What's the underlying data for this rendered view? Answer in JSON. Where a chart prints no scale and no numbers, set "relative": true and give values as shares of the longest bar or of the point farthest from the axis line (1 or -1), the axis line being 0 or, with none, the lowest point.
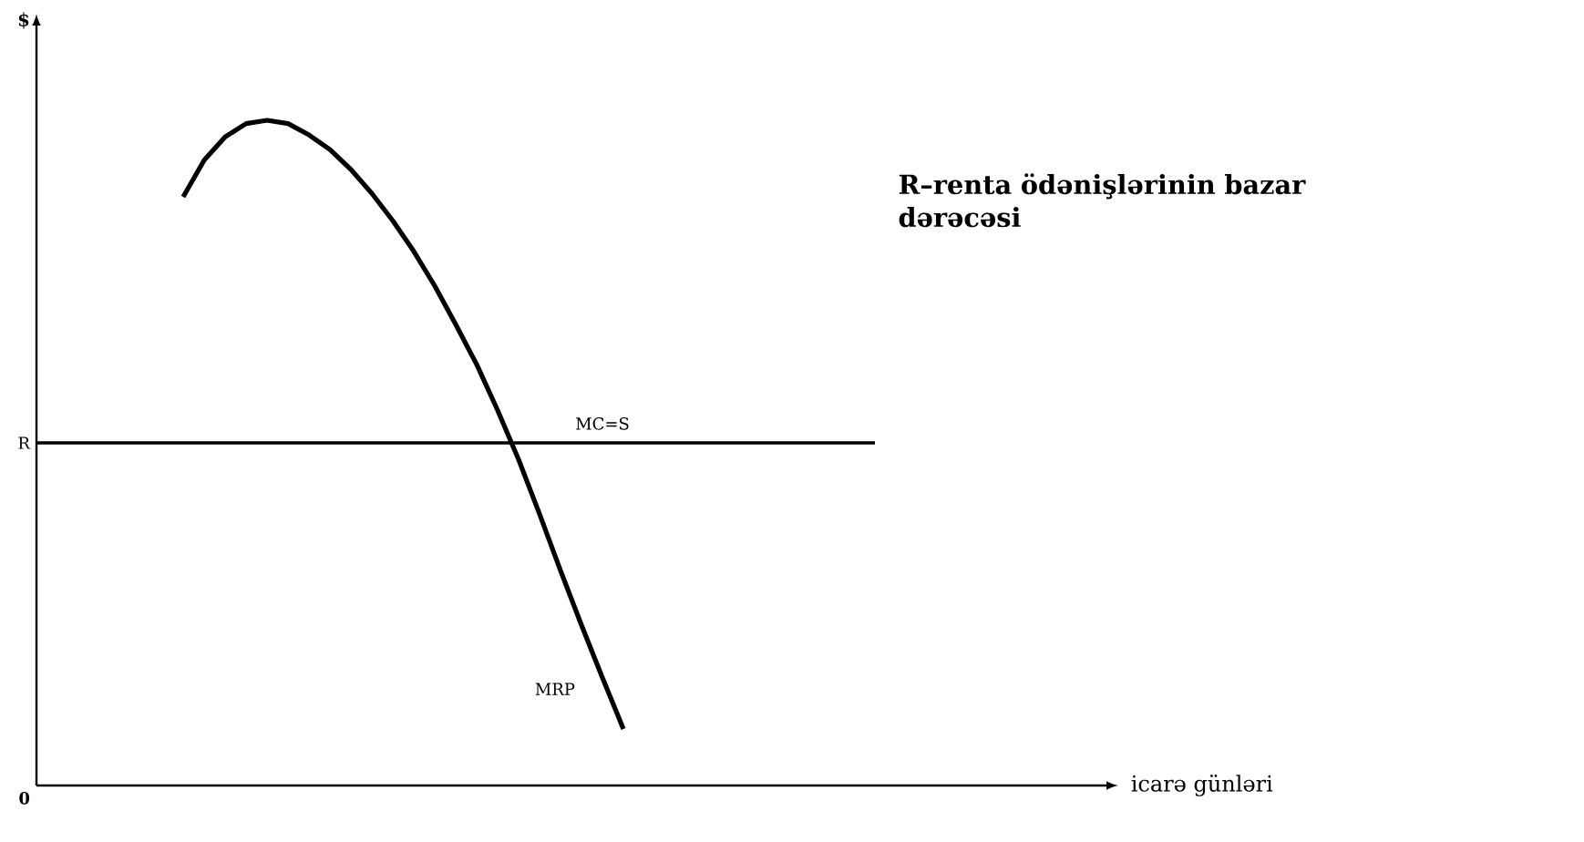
{
  "chart_data": {
    "type": "line",
    "relative": true,
    "marker": "none",
    "categories": [
      null,
      null,
      null,
      null,
      null,
      null,
      null,
      null,
      null,
      null,
      null,
      null,
      null,
      null,
      null,
      null,
      null,
      null,
      null,
      null,
      null,
      null,
      null,
      null,
      null,
      null,
      null,
      null,
      null,
      null,
      null,
      null,
      null,
      null,
      null,
      null,
      null,
      null,
      null,
      null,
      null
    ],
    "series": [
      {
        "name": "MRP",
        "color": "#000000",
        "values": [
          null,
          null,
          null,
          null,
          null,
          null,
          null,
          0.885,
          0.94,
          0.975,
          0.995,
          1.0,
          0.995,
          0.978,
          0.956,
          0.926,
          0.89,
          0.849,
          0.803,
          0.751,
          0.693,
          0.633,
          0.564,
          0.49,
          0.408,
          0.323,
          0.241,
          0.162,
          0.085,
          null,
          null,
          null,
          null,
          null,
          null,
          null,
          null,
          null,
          null,
          null,
          null
        ]
      },
      {
        "name": "MC=S",
        "color": "#000000",
        "values": [
          0.515,
          0.515,
          0.515,
          0.515,
          0.515,
          0.515,
          0.515,
          0.515,
          0.515,
          0.515,
          0.515,
          0.515,
          0.515,
          0.515,
          0.515,
          0.515,
          0.515,
          0.515,
          0.515,
          0.515,
          0.515,
          0.515,
          0.515,
          0.515,
          0.515,
          0.515,
          0.515,
          0.515,
          0.515,
          0.515,
          0.515,
          0.515,
          0.515,
          0.515,
          0.515,
          0.515,
          0.515,
          0.515,
          0.515,
          0.515,
          0.515
        ]
      }
    ],
    "annotations": [
      "0",
      "R",
      "$",
      "icarə günləri",
      "R–renta ödənişlərinin bazar dərəcəsi"
    ]
  }
}
